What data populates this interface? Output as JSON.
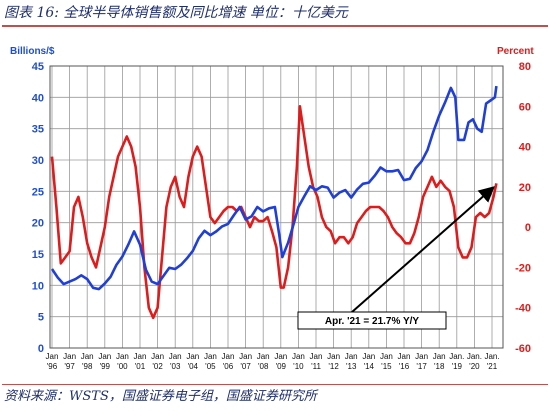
{
  "header": {
    "title": "图表 16:  全球半导体销售额及同比增速  单位：十亿美元"
  },
  "footer": {
    "source": "资料来源：WSTS，国盛证券电子组，国盛证券研究所"
  },
  "colors": {
    "sales": "#1f3fd8",
    "growth": "#e01b1b",
    "accent": "#c0504d"
  },
  "chart_data": {
    "type": "line",
    "ylabel_left": "Billions/$",
    "ylabel_right": "Percent",
    "ylim_left": [
      0,
      45
    ],
    "ylim_right": [
      -60,
      80
    ],
    "yticks_left": [
      0,
      5,
      10,
      15,
      20,
      25,
      30,
      35,
      40,
      45
    ],
    "yticks_right": [
      -60,
      -40,
      -20,
      0,
      20,
      40,
      60,
      80
    ],
    "x_tick_labels": [
      {
        "top": "Jan",
        "bottom": "'96"
      },
      {
        "top": "Jan",
        "bottom": "'97"
      },
      {
        "top": "Jan",
        "bottom": "'98"
      },
      {
        "top": "Jan",
        "bottom": "'99"
      },
      {
        "top": "Jan",
        "bottom": "'00"
      },
      {
        "top": "Jan",
        "bottom": "'01"
      },
      {
        "top": "Jan",
        "bottom": "'02"
      },
      {
        "top": "Jan",
        "bottom": "'03"
      },
      {
        "top": "Jan",
        "bottom": "'04"
      },
      {
        "top": "Jan",
        "bottom": "'05"
      },
      {
        "top": "Jan",
        "bottom": "'06"
      },
      {
        "top": "Jan",
        "bottom": "'07"
      },
      {
        "top": "Jan",
        "bottom": "'08"
      },
      {
        "top": "Jan",
        "bottom": "'09"
      },
      {
        "top": "Jan",
        "bottom": "'10"
      },
      {
        "top": "Jan",
        "bottom": "'11"
      },
      {
        "top": "Jan",
        "bottom": "'12"
      },
      {
        "top": "Jan",
        "bottom": "'13"
      },
      {
        "top": "Jan",
        "bottom": "'14"
      },
      {
        "top": "Jan",
        "bottom": "'15"
      },
      {
        "top": "Jan",
        "bottom": "'16"
      },
      {
        "top": "Jan",
        "bottom": "'17"
      },
      {
        "top": "Jan",
        "bottom": "'18"
      },
      {
        "top": "Jan.",
        "bottom": "'19"
      },
      {
        "top": "Jan.",
        "bottom": "'20"
      },
      {
        "top": "Jan.",
        "bottom": "'21"
      }
    ],
    "grid": true,
    "series": [
      {
        "axis": "left",
        "color": "#1f3fd8",
        "points": [
          [
            "1996-01",
            12.6
          ],
          [
            "1996-05",
            11.2
          ],
          [
            "1996-09",
            10.2
          ],
          [
            "1997-01",
            10.6
          ],
          [
            "1997-05",
            11.0
          ],
          [
            "1997-09",
            11.6
          ],
          [
            "1998-01",
            11.0
          ],
          [
            "1998-05",
            9.6
          ],
          [
            "1998-09",
            9.4
          ],
          [
            "1999-01",
            10.3
          ],
          [
            "1999-05",
            11.4
          ],
          [
            "1999-09",
            13.3
          ],
          [
            "2000-01",
            14.6
          ],
          [
            "2000-05",
            16.5
          ],
          [
            "2000-09",
            18.6
          ],
          [
            "2001-01",
            16.5
          ],
          [
            "2001-05",
            12.5
          ],
          [
            "2001-09",
            10.6
          ],
          [
            "2002-01",
            10.2
          ],
          [
            "2002-05",
            11.5
          ],
          [
            "2002-09",
            12.8
          ],
          [
            "2003-01",
            12.6
          ],
          [
            "2003-05",
            13.3
          ],
          [
            "2003-09",
            14.3
          ],
          [
            "2004-01",
            15.5
          ],
          [
            "2004-05",
            17.5
          ],
          [
            "2004-09",
            18.7
          ],
          [
            "2005-01",
            18.0
          ],
          [
            "2005-05",
            18.6
          ],
          [
            "2005-09",
            19.4
          ],
          [
            "2006-01",
            19.8
          ],
          [
            "2006-05",
            21.2
          ],
          [
            "2006-09",
            22.5
          ],
          [
            "2007-01",
            20.5
          ],
          [
            "2007-05",
            21.0
          ],
          [
            "2007-09",
            22.5
          ],
          [
            "2008-01",
            21.8
          ],
          [
            "2008-05",
            22.3
          ],
          [
            "2008-09",
            22.5
          ],
          [
            "2008-12",
            18.0
          ],
          [
            "2009-02",
            14.5
          ],
          [
            "2009-06",
            16.8
          ],
          [
            "2009-10",
            20.0
          ],
          [
            "2010-01",
            22.5
          ],
          [
            "2010-05",
            24.2
          ],
          [
            "2010-09",
            25.8
          ],
          [
            "2011-01",
            25.2
          ],
          [
            "2011-05",
            25.8
          ],
          [
            "2011-09",
            25.6
          ],
          [
            "2012-01",
            24.0
          ],
          [
            "2012-05",
            24.8
          ],
          [
            "2012-09",
            25.2
          ],
          [
            "2013-01",
            24.0
          ],
          [
            "2013-05",
            25.3
          ],
          [
            "2013-09",
            26.2
          ],
          [
            "2014-01",
            26.4
          ],
          [
            "2014-05",
            27.5
          ],
          [
            "2014-09",
            28.8
          ],
          [
            "2015-01",
            28.2
          ],
          [
            "2015-05",
            28.2
          ],
          [
            "2015-09",
            28.4
          ],
          [
            "2016-01",
            26.8
          ],
          [
            "2016-05",
            27.0
          ],
          [
            "2016-09",
            28.7
          ],
          [
            "2017-01",
            29.8
          ],
          [
            "2017-05",
            31.6
          ],
          [
            "2017-09",
            34.5
          ],
          [
            "2018-01",
            37.1
          ],
          [
            "2018-05",
            39.2
          ],
          [
            "2018-09",
            41.5
          ],
          [
            "2018-12",
            40.0
          ],
          [
            "2019-02",
            33.2
          ],
          [
            "2019-06",
            33.2
          ],
          [
            "2019-09",
            36.0
          ],
          [
            "2019-12",
            36.5
          ],
          [
            "2020-03",
            35.0
          ],
          [
            "2020-06",
            34.5
          ],
          [
            "2020-09",
            39.0
          ],
          [
            "2020-12",
            39.5
          ],
          [
            "2021-03",
            40.0
          ],
          [
            "2021-04",
            41.8
          ]
        ]
      },
      {
        "axis": "right",
        "color": "#e01b1b",
        "points": [
          [
            "1996-01",
            35
          ],
          [
            "1996-04",
            10
          ],
          [
            "1996-07",
            -18
          ],
          [
            "1996-10",
            -15
          ],
          [
            "1997-01",
            -12
          ],
          [
            "1997-04",
            10
          ],
          [
            "1997-07",
            15
          ],
          [
            "1997-10",
            5
          ],
          [
            "1998-01",
            -8
          ],
          [
            "1998-04",
            -15
          ],
          [
            "1998-07",
            -20
          ],
          [
            "1998-10",
            -10
          ],
          [
            "1999-01",
            0
          ],
          [
            "1999-04",
            15
          ],
          [
            "1999-07",
            25
          ],
          [
            "1999-10",
            35
          ],
          [
            "2000-01",
            40
          ],
          [
            "2000-04",
            45
          ],
          [
            "2000-07",
            40
          ],
          [
            "2000-10",
            30
          ],
          [
            "2001-01",
            10
          ],
          [
            "2001-04",
            -20
          ],
          [
            "2001-07",
            -40
          ],
          [
            "2001-10",
            -45
          ],
          [
            "2002-01",
            -40
          ],
          [
            "2002-04",
            -15
          ],
          [
            "2002-07",
            10
          ],
          [
            "2002-10",
            20
          ],
          [
            "2003-01",
            25
          ],
          [
            "2003-04",
            15
          ],
          [
            "2003-07",
            10
          ],
          [
            "2003-10",
            25
          ],
          [
            "2004-01",
            35
          ],
          [
            "2004-04",
            40
          ],
          [
            "2004-07",
            35
          ],
          [
            "2004-10",
            20
          ],
          [
            "2005-01",
            5
          ],
          [
            "2005-04",
            2
          ],
          [
            "2005-07",
            5
          ],
          [
            "2005-10",
            8
          ],
          [
            "2006-01",
            10
          ],
          [
            "2006-04",
            10
          ],
          [
            "2006-07",
            8
          ],
          [
            "2006-10",
            10
          ],
          [
            "2007-01",
            5
          ],
          [
            "2007-04",
            0
          ],
          [
            "2007-07",
            5
          ],
          [
            "2007-10",
            3
          ],
          [
            "2008-01",
            3
          ],
          [
            "2008-04",
            5
          ],
          [
            "2008-07",
            -2
          ],
          [
            "2008-10",
            -10
          ],
          [
            "2009-01",
            -30
          ],
          [
            "2009-03",
            -30
          ],
          [
            "2009-06",
            -20
          ],
          [
            "2009-09",
            0
          ],
          [
            "2009-12",
            30
          ],
          [
            "2010-02",
            60
          ],
          [
            "2010-05",
            45
          ],
          [
            "2010-08",
            30
          ],
          [
            "2010-11",
            20
          ],
          [
            "2011-02",
            15
          ],
          [
            "2011-05",
            5
          ],
          [
            "2011-08",
            0
          ],
          [
            "2011-11",
            -2
          ],
          [
            "2012-02",
            -8
          ],
          [
            "2012-05",
            -5
          ],
          [
            "2012-08",
            -5
          ],
          [
            "2012-11",
            -8
          ],
          [
            "2013-02",
            -5
          ],
          [
            "2013-05",
            2
          ],
          [
            "2013-08",
            5
          ],
          [
            "2013-11",
            8
          ],
          [
            "2014-02",
            10
          ],
          [
            "2014-05",
            10
          ],
          [
            "2014-08",
            10
          ],
          [
            "2014-11",
            8
          ],
          [
            "2015-02",
            5
          ],
          [
            "2015-05",
            0
          ],
          [
            "2015-08",
            -3
          ],
          [
            "2015-11",
            -5
          ],
          [
            "2016-02",
            -8
          ],
          [
            "2016-05",
            -8
          ],
          [
            "2016-08",
            -3
          ],
          [
            "2016-11",
            5
          ],
          [
            "2017-02",
            15
          ],
          [
            "2017-05",
            20
          ],
          [
            "2017-08",
            25
          ],
          [
            "2017-11",
            20
          ],
          [
            "2018-02",
            23
          ],
          [
            "2018-05",
            20
          ],
          [
            "2018-08",
            18
          ],
          [
            "2018-11",
            10
          ],
          [
            "2019-02",
            -10
          ],
          [
            "2019-05",
            -15
          ],
          [
            "2019-08",
            -15
          ],
          [
            "2019-11",
            -10
          ],
          [
            "2020-02",
            5
          ],
          [
            "2020-05",
            7
          ],
          [
            "2020-08",
            5
          ],
          [
            "2020-11",
            7
          ],
          [
            "2021-02",
            15
          ],
          [
            "2021-04",
            21.7
          ]
        ]
      }
    ],
    "annotation": {
      "text": "Apr. '21 = 21.7% Y/Y",
      "target": [
        "2021-04",
        21.7
      ]
    }
  }
}
